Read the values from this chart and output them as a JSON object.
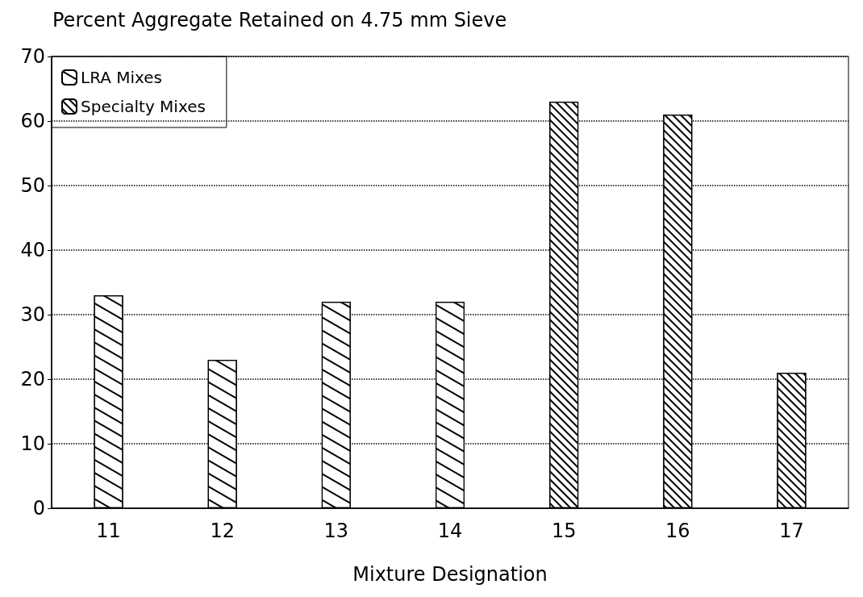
{
  "chart_data": {
    "type": "bar",
    "title": "Percent Aggregate Retained on 4.75 mm Sieve",
    "xlabel": "Mixture Designation",
    "categories": [
      "11",
      "12",
      "13",
      "14",
      "15",
      "16",
      "17"
    ],
    "series": [
      {
        "name": "LRA Mixes",
        "color": "#ffffff",
        "values": [
          33,
          23,
          32,
          32,
          null,
          null,
          null
        ]
      },
      {
        "name": "Specialty Mixes",
        "color": "#ffffff",
        "values": [
          null,
          null,
          null,
          null,
          63,
          61,
          21
        ]
      }
    ],
    "ylim": [
      0,
      70
    ],
    "yticks": [
      0,
      10,
      20,
      30,
      40,
      50,
      60,
      70
    ],
    "grid": "y",
    "legend": "top left"
  }
}
